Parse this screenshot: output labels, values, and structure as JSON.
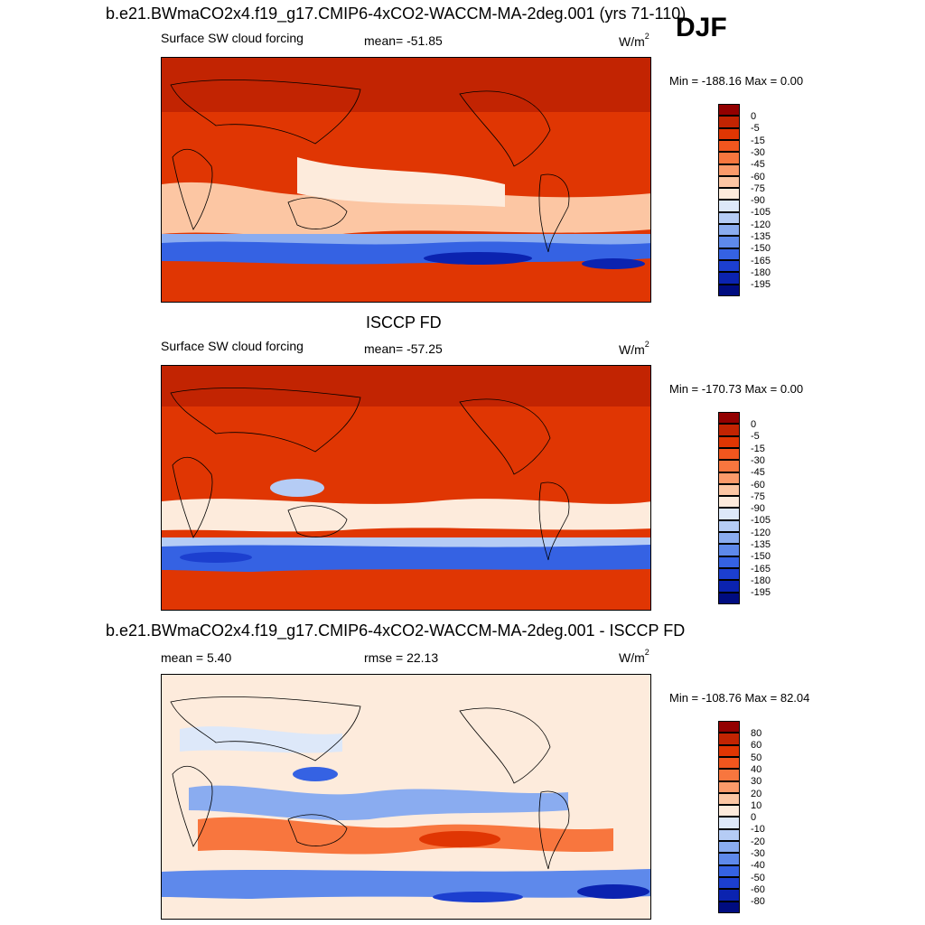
{
  "header": {
    "title_top": "b.e21.BWmaCO2x4.f19_g17.CMIP6-4xCO2-WACCM-MA-2deg.001 (yrs 71-110)",
    "season": "DJF"
  },
  "panels": [
    {
      "title": "",
      "left_label": "Surface SW cloud forcing",
      "center_label": "mean= -51.85",
      "units": "W/m",
      "units_sup": "2",
      "minmax": "Min = -188.16 Max =   0.00",
      "colorbar_labels": [
        "0",
        "-5",
        "-15",
        "-30",
        "-45",
        "-60",
        "-75",
        "-90",
        "-105",
        "-120",
        "-135",
        "-150",
        "-165",
        "-180",
        "-195"
      ],
      "colorbar_colors": [
        "#930000",
        "#c22402",
        "#e03603",
        "#f1561e",
        "#f8763e",
        "#fb9a6a",
        "#fcc6a3",
        "#fdebdc",
        "#dde8f9",
        "#b5ccf5",
        "#8aacf0",
        "#5e89eb",
        "#3562e3",
        "#1c3fcf",
        "#0b23b0",
        "#000c80"
      ]
    },
    {
      "title": "ISCCP FD",
      "left_label": "Surface SW cloud forcing",
      "center_label": "mean= -57.25",
      "units": "W/m",
      "units_sup": "2",
      "minmax": "Min = -170.73 Max =   0.00",
      "colorbar_labels": [
        "0",
        "-5",
        "-15",
        "-30",
        "-45",
        "-60",
        "-75",
        "-90",
        "-105",
        "-120",
        "-135",
        "-150",
        "-165",
        "-180",
        "-195"
      ],
      "colorbar_colors": [
        "#930000",
        "#c22402",
        "#e03603",
        "#f1561e",
        "#f8763e",
        "#fb9a6a",
        "#fcc6a3",
        "#fdebdc",
        "#dde8f9",
        "#b5ccf5",
        "#8aacf0",
        "#5e89eb",
        "#3562e3",
        "#1c3fcf",
        "#0b23b0",
        "#000c80"
      ]
    },
    {
      "title": "b.e21.BWmaCO2x4.f19_g17.CMIP6-4xCO2-WACCM-MA-2deg.001 - ISCCP FD",
      "left_label": "mean =   5.40",
      "center_label": "rmse =  22.13",
      "units": "W/m",
      "units_sup": "2",
      "minmax": "Min = -108.76 Max =  82.04",
      "colorbar_labels": [
        "80",
        "60",
        "50",
        "40",
        "30",
        "20",
        "10",
        "0",
        "-10",
        "-20",
        "-30",
        "-40",
        "-50",
        "-60",
        "-80"
      ],
      "colorbar_colors": [
        "#930000",
        "#c22402",
        "#e03603",
        "#f1561e",
        "#f8763e",
        "#fb9a6a",
        "#fcc6a3",
        "#fdebdc",
        "#dde8f9",
        "#b5ccf5",
        "#8aacf0",
        "#5e89eb",
        "#3562e3",
        "#1c3fcf",
        "#0b23b0",
        "#000c80"
      ]
    }
  ],
  "chart_data": [
    {
      "type": "heatmap",
      "title": "b.e21.BWmaCO2x4.f19_g17.CMIP6-4xCO2-WACCM-MA-2deg.001 (yrs 71-110)",
      "variable": "Surface SW cloud forcing",
      "units": "W/m2",
      "season": "DJF",
      "mean": -51.85,
      "min": -188.16,
      "max": 0.0,
      "contour_levels": [
        0,
        -5,
        -15,
        -30,
        -45,
        -60,
        -75,
        -90,
        -105,
        -120,
        -135,
        -150,
        -165,
        -180,
        -195
      ]
    },
    {
      "type": "heatmap",
      "title": "ISCCP FD",
      "variable": "Surface SW cloud forcing",
      "units": "W/m2",
      "season": "DJF",
      "mean": -57.25,
      "min": -170.73,
      "max": 0.0,
      "contour_levels": [
        0,
        -5,
        -15,
        -30,
        -45,
        -60,
        -75,
        -90,
        -105,
        -120,
        -135,
        -150,
        -165,
        -180,
        -195
      ]
    },
    {
      "type": "heatmap",
      "title": "b.e21.BWmaCO2x4.f19_g17.CMIP6-4xCO2-WACCM-MA-2deg.001 - ISCCP FD",
      "units": "W/m2",
      "season": "DJF",
      "mean": 5.4,
      "rmse": 22.13,
      "min": -108.76,
      "max": 82.04,
      "contour_levels": [
        80,
        60,
        50,
        40,
        30,
        20,
        10,
        0,
        -10,
        -20,
        -30,
        -40,
        -50,
        -60,
        -80
      ]
    }
  ]
}
